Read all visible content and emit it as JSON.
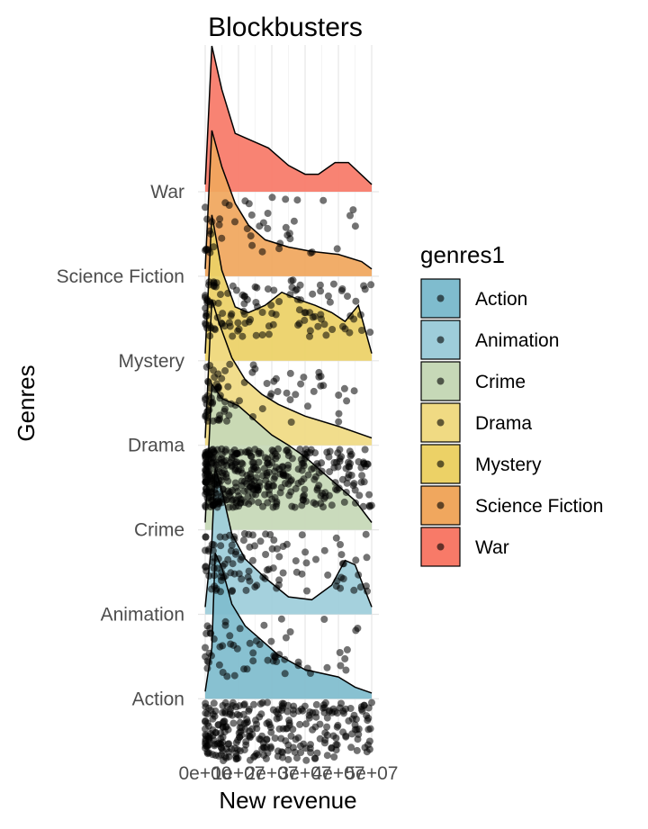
{
  "chart_data": {
    "type": "raincloud",
    "title": "Blockbusters",
    "xlabel": "New revenue",
    "ylabel": "Genres",
    "xlim": [
      0,
      50000000
    ],
    "x_ticks": [
      "0e+00",
      "1e+07",
      "2e+07",
      "3e+07",
      "4e+07",
      "5e+07"
    ],
    "grid": true,
    "legend_title": "genres1",
    "legend_position": "right",
    "categories": [
      "Action",
      "Animation",
      "Crime",
      "Drama",
      "Mystery",
      "Science Fiction",
      "War"
    ],
    "series": [
      {
        "name": "Action",
        "color": "#7FBCCE",
        "n_points": 300,
        "density_x": [
          0,
          2000000,
          3000000,
          5000000,
          8000000,
          12000000,
          17000000,
          22000000,
          30000000,
          40000000,
          45000000,
          50000000
        ],
        "density_y": [
          0.05,
          0.35,
          1.0,
          0.9,
          0.65,
          0.5,
          0.4,
          0.3,
          0.2,
          0.15,
          0.08,
          0.04
        ]
      },
      {
        "name": "Animation",
        "color": "#9ECDDA",
        "n_points": 60,
        "density_x": [
          0,
          2000000,
          3000000,
          5000000,
          8000000,
          12000000,
          18000000,
          25000000,
          32000000,
          38000000,
          42000000,
          45000000,
          50000000
        ],
        "density_y": [
          0.05,
          0.5,
          1.0,
          0.85,
          0.55,
          0.38,
          0.25,
          0.12,
          0.1,
          0.2,
          0.37,
          0.34,
          0.05
        ]
      },
      {
        "name": "Crime",
        "color": "#C6D8B7",
        "n_points": 110,
        "density_x": [
          0,
          2000000,
          5000000,
          10000000,
          15000000,
          20000000,
          25000000,
          30000000,
          35000000,
          40000000,
          45000000,
          50000000
        ],
        "density_y": [
          0.05,
          1.0,
          0.9,
          0.85,
          0.75,
          0.65,
          0.58,
          0.5,
          0.4,
          0.3,
          0.2,
          0.05
        ]
      },
      {
        "name": "Drama",
        "color": "#F0DA83",
        "n_points": 400,
        "density_x": [
          0,
          2000000,
          4000000,
          8000000,
          12000000,
          17000000,
          22000000,
          30000000,
          40000000,
          50000000
        ],
        "density_y": [
          0.05,
          1.0,
          0.85,
          0.6,
          0.45,
          0.35,
          0.28,
          0.2,
          0.13,
          0.05
        ]
      },
      {
        "name": "Mystery",
        "color": "#ECD166",
        "n_points": 80,
        "density_x": [
          0,
          2000000,
          5000000,
          9000000,
          13000000,
          18000000,
          23000000,
          28000000,
          33000000,
          38000000,
          42000000,
          46000000,
          50000000
        ],
        "density_y": [
          0.05,
          1.0,
          0.62,
          0.37,
          0.33,
          0.38,
          0.47,
          0.42,
          0.38,
          0.33,
          0.27,
          0.38,
          0.05
        ]
      },
      {
        "name": "Science Fiction",
        "color": "#F0A75E",
        "n_points": 120,
        "density_x": [
          0,
          2000000,
          5000000,
          9000000,
          13000000,
          18000000,
          25000000,
          32000000,
          40000000,
          47000000,
          50000000
        ],
        "density_y": [
          0.05,
          1.0,
          0.75,
          0.5,
          0.35,
          0.25,
          0.2,
          0.17,
          0.15,
          0.1,
          0.05
        ]
      },
      {
        "name": "War",
        "color": "#F87A68",
        "n_points": 45,
        "density_x": [
          0,
          2000000,
          5000000,
          9000000,
          14000000,
          19000000,
          25000000,
          30000000,
          34000000,
          39000000,
          43000000,
          50000000
        ],
        "density_y": [
          0.05,
          1.0,
          0.7,
          0.4,
          0.35,
          0.3,
          0.18,
          0.12,
          0.12,
          0.2,
          0.2,
          0.05
        ]
      }
    ]
  }
}
